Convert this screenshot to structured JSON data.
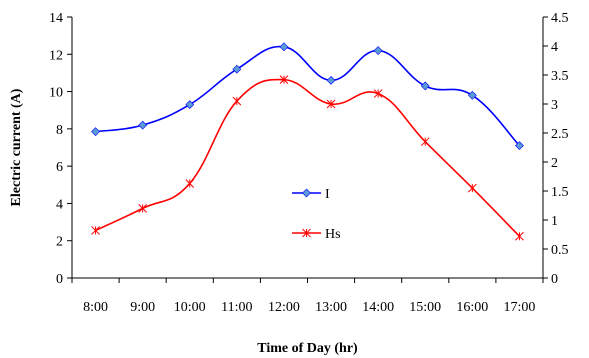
{
  "chart_data": {
    "type": "line",
    "categories": [
      "8:00",
      "9:00",
      "10:00",
      "11:00",
      "12:00",
      "13:00",
      "14:00",
      "15:00",
      "16:00",
      "17:00"
    ],
    "xlabel": "Time of Day (hr)",
    "ylabel": "Electric current (A)",
    "ylim": [
      0,
      14
    ],
    "yticks": [
      "0",
      "2",
      "4",
      "6",
      "8",
      "10",
      "12",
      "14"
    ],
    "y2lim": [
      0,
      4.5
    ],
    "y2ticks": [
      "0",
      "0.5",
      "1",
      "1.5",
      "2",
      "2.5",
      "3",
      "3.5",
      "4",
      "4.5"
    ],
    "grid": false,
    "legend_position": "center",
    "series": [
      {
        "name": "I",
        "axis": "left",
        "color": "#0000ff",
        "marker": "diamond",
        "values": [
          7.85,
          8.2,
          9.3,
          11.2,
          12.4,
          10.6,
          12.2,
          10.3,
          9.8,
          7.1
        ]
      },
      {
        "name": "Hs",
        "axis": "right",
        "color": "#ff0000",
        "marker": "asterisk",
        "values": [
          0.82,
          1.2,
          1.63,
          3.05,
          3.42,
          3.0,
          3.18,
          2.35,
          1.55,
          0.72
        ]
      }
    ]
  }
}
